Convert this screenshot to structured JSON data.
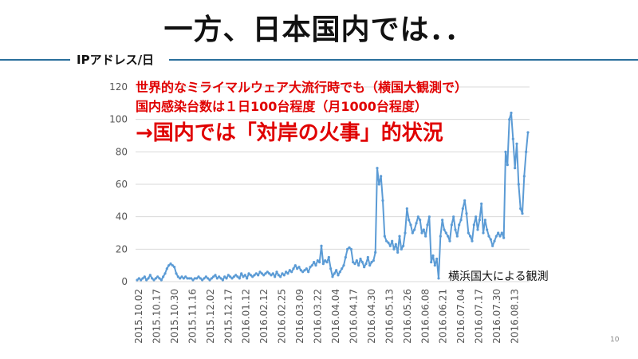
{
  "slide": {
    "title": "一方、日本国内では．．",
    "section_label": "IPアドレス/日",
    "annotation_line1": "世界的なミライマルウェア大流行時でも（横国大観測で）",
    "annotation_line2": "国内感染台数は１日100台程度（月1000台程度）",
    "annotation_line3": "→国内では「対岸の火事」的状況",
    "source_note": "横浜国大による観測",
    "page_number": "10",
    "colors": {
      "rule": "#2a6f9c",
      "line": "#5b9bd5",
      "annotation": "#e00000"
    }
  },
  "chart_data": {
    "type": "line",
    "title": "",
    "xlabel": "",
    "ylabel": "IPアドレス/日",
    "ylim": [
      0,
      120
    ],
    "yticks": [
      0,
      20,
      40,
      60,
      80,
      100,
      120
    ],
    "grid": true,
    "xtick_labels": [
      "2015.10.02",
      "2015.10.17",
      "2015.10.30",
      "2015.11.16",
      "2015.12.02",
      "2015.12.17",
      "2016.01.12",
      "2016.02.12",
      "2016.02.25",
      "2016.03.09",
      "2016.03.22",
      "2016.04.04",
      "2016.04.17",
      "2016.04.30",
      "2016.05.13",
      "2016.05.26",
      "2016.06.08",
      "2016.06.21",
      "2016.07.04",
      "2016.07.17",
      "2016.07.30",
      "2016.08.13"
    ],
    "series": [
      {
        "values": [
          1,
          2,
          1,
          2,
          3,
          1,
          2,
          4,
          2,
          1,
          2,
          3,
          2,
          1,
          3,
          5,
          8,
          10,
          11,
          10,
          9,
          5,
          3,
          2,
          3,
          2,
          3,
          2,
          2,
          2,
          1,
          2,
          2,
          3,
          2,
          1,
          2,
          3,
          2,
          1,
          2,
          3,
          4,
          2,
          3,
          2,
          1,
          3,
          2,
          4,
          3,
          2,
          3,
          4,
          3,
          2,
          5,
          3,
          4,
          2,
          5,
          4,
          3,
          4,
          5,
          4,
          6,
          5,
          4,
          5,
          6,
          5,
          4,
          5,
          3,
          6,
          4,
          3,
          5,
          4,
          6,
          5,
          7,
          6,
          8,
          10,
          8,
          9,
          7,
          6,
          7,
          8,
          6,
          9,
          10,
          12,
          10,
          13,
          12,
          22,
          11,
          13,
          12,
          15,
          8,
          3,
          5,
          7,
          4,
          6,
          8,
          10,
          15,
          20,
          21,
          20,
          12,
          11,
          13,
          10,
          14,
          12,
          9,
          11,
          15,
          10,
          12,
          13,
          18,
          70,
          60,
          65,
          50,
          28,
          25,
          24,
          22,
          25,
          20,
          23,
          18,
          28,
          20,
          22,
          30,
          45,
          38,
          35,
          30,
          32,
          36,
          40,
          38,
          30,
          32,
          28,
          35,
          40,
          12,
          16,
          10,
          14,
          2,
          28,
          38,
          32,
          30,
          28,
          25,
          35,
          40,
          32,
          28,
          35,
          38,
          45,
          50,
          42,
          30,
          28,
          25,
          35,
          40,
          32,
          38,
          48,
          30,
          38,
          32,
          28,
          26,
          22,
          25,
          28,
          30,
          28,
          30,
          27,
          80,
          72,
          100,
          104,
          88,
          70,
          85,
          60,
          45,
          42,
          65,
          80,
          92
        ]
      }
    ]
  }
}
